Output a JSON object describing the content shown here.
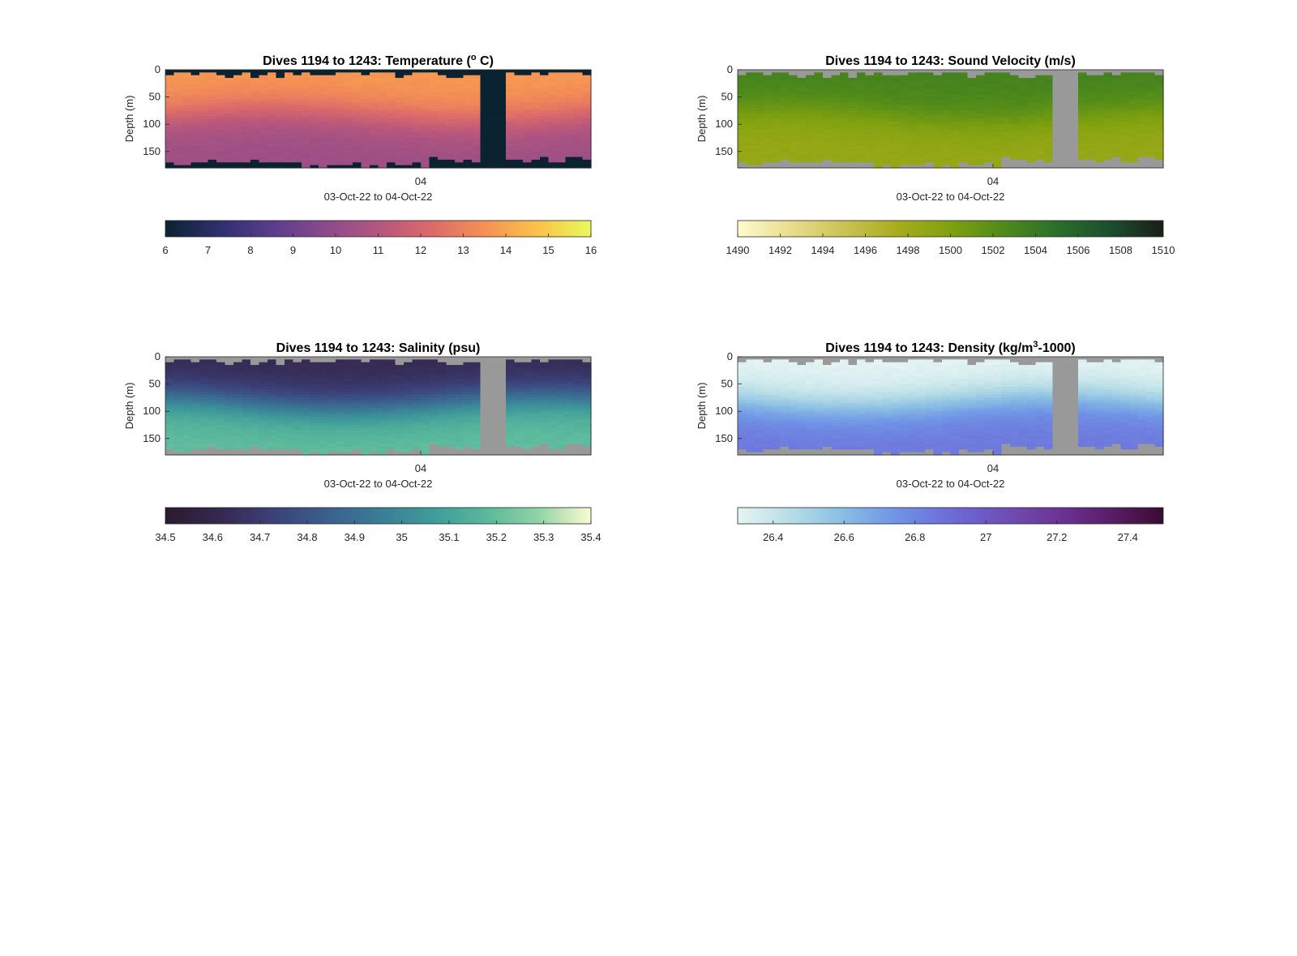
{
  "chart_data": [
    {
      "type": "heatmap",
      "variable": "temperature",
      "title": "Dives 1194 to 1243: Temperature (",
      "title_sup": "o",
      "title_tail": " C)",
      "ylabel": "Depth (m)",
      "yticks": [
        0,
        50,
        100,
        150
      ],
      "ylim": [
        0,
        180
      ],
      "xtick_label": "04",
      "xlabel": "03-Oct-22 to 04-Oct-22",
      "missing_color": "#0b2330",
      "colormap": [
        "#0b2330",
        "#2e2f6e",
        "#5a3c8c",
        "#8a4a8c",
        "#b5567e",
        "#dc6a6a",
        "#f59154",
        "#fbc248",
        "#e8fa5b"
      ],
      "clim": [
        6,
        16
      ],
      "colorbar_ticks": [
        6,
        7,
        8,
        9,
        10,
        11,
        12,
        13,
        14,
        15,
        16
      ],
      "surface_value": 13.7,
      "bottom_value": 10.3,
      "gap_profiles": [
        37,
        38,
        39
      ]
    },
    {
      "type": "heatmap",
      "variable": "sound_velocity",
      "title": "Dives 1194 to 1243: Sound Velocity (m/s)",
      "title_sup": "",
      "title_tail": "",
      "ylabel": "Depth (m)",
      "yticks": [
        0,
        50,
        100,
        150
      ],
      "ylim": [
        0,
        180
      ],
      "xtick_label": "04",
      "xlabel": "03-Oct-22 to 04-Oct-22",
      "missing_color": "#999999",
      "colormap": [
        "#fefccf",
        "#e9dc8c",
        "#cbc353",
        "#a7ad1c",
        "#80a10f",
        "#4f8a1a",
        "#2b6f2c",
        "#1c4e2d",
        "#1a1e17"
      ],
      "clim": [
        1490,
        1510
      ],
      "colorbar_ticks": [
        1490,
        1492,
        1494,
        1496,
        1498,
        1500,
        1502,
        1504,
        1506,
        1508,
        1510
      ],
      "surface_value": 1503.2,
      "bottom_value": 1498.6,
      "gap_profiles": [
        37,
        38,
        39
      ]
    },
    {
      "type": "heatmap",
      "variable": "salinity",
      "title": "Dives 1194 to 1243: Salinity (psu)",
      "title_sup": "",
      "title_tail": "",
      "ylabel": "Depth (m)",
      "yticks": [
        0,
        50,
        100,
        150
      ],
      "ylim": [
        0,
        180
      ],
      "xtick_label": "04",
      "xlabel": "03-Oct-22 to 04-Oct-22",
      "missing_color": "#999999",
      "colormap": [
        "#2b1a2e",
        "#35284f",
        "#3b4078",
        "#3b5e8c",
        "#3a7c96",
        "#3f9b9a",
        "#58b79b",
        "#8fd3a5",
        "#fbfbd0"
      ],
      "clim": [
        34.5,
        35.4
      ],
      "colorbar_ticks": [
        34.5,
        34.6,
        34.7,
        34.8,
        34.9,
        35,
        35.1,
        35.2,
        35.3,
        35.4
      ],
      "surface_value": 34.62,
      "bottom_value": 35.2,
      "gap_profiles": [
        37,
        38,
        39
      ]
    },
    {
      "type": "heatmap",
      "variable": "density",
      "title": "Dives 1194 to 1243: Density (kg/m",
      "title_sup": "3",
      "title_tail": "-1000)",
      "ylabel": "Depth (m)",
      "yticks": [
        0,
        50,
        100,
        150
      ],
      "ylim": [
        0,
        180
      ],
      "xtick_label": "04",
      "xlabel": "03-Oct-22 to 04-Oct-22",
      "missing_color": "#999999",
      "colormap": [
        "#e6f4f3",
        "#b6dde6",
        "#88bde4",
        "#6f93e6",
        "#6e6bd8",
        "#6f4fb7",
        "#6b3595",
        "#5b1d69",
        "#3a0c30"
      ],
      "clim": [
        26.3,
        27.5
      ],
      "colorbar_ticks": [
        26.4,
        26.6,
        26.8,
        27,
        27.2,
        27.4
      ],
      "surface_value": 26.3,
      "bottom_value": 26.85,
      "gap_profiles": [
        37,
        38,
        39
      ]
    }
  ]
}
